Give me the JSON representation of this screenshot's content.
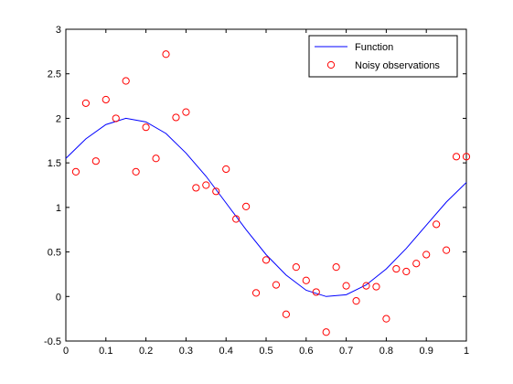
{
  "chart_data": {
    "type": "line",
    "xlim": [
      0,
      1
    ],
    "ylim": [
      -0.5,
      3
    ],
    "xticks": [
      0,
      0.1,
      0.2,
      0.3,
      0.4,
      0.5,
      0.6,
      0.7,
      0.8,
      0.9,
      1
    ],
    "yticks": [
      -0.5,
      0,
      0.5,
      1,
      1.5,
      2,
      2.5,
      3
    ],
    "xtick_labels": [
      "0",
      "0.1",
      "0.2",
      "0.3",
      "0.4",
      "0.5",
      "0.6",
      "0.7",
      "0.8",
      "0.9",
      "1"
    ],
    "ytick_labels": [
      "-0.5",
      "0",
      "0.5",
      "1",
      "1.5",
      "2",
      "2.5",
      "3"
    ],
    "grid": false,
    "legend_position": "top-right",
    "series": [
      {
        "name": "Function",
        "kind": "line",
        "color": "#0000ff",
        "x": [
          0,
          0.05,
          0.1,
          0.15,
          0.2,
          0.25,
          0.3,
          0.35,
          0.4,
          0.45,
          0.5,
          0.55,
          0.6,
          0.65,
          0.7,
          0.75,
          0.8,
          0.85,
          0.9,
          0.95,
          1
        ],
        "y": [
          1.55,
          1.77,
          1.93,
          2.0,
          1.96,
          1.83,
          1.61,
          1.35,
          1.05,
          0.75,
          0.47,
          0.24,
          0.07,
          0.0,
          0.02,
          0.13,
          0.31,
          0.54,
          0.8,
          1.06,
          1.28
        ]
      },
      {
        "name": "Noisy observations",
        "kind": "scatter",
        "color": "#ff0000",
        "x": [
          0.025,
          0.05,
          0.075,
          0.1,
          0.125,
          0.15,
          0.175,
          0.2,
          0.225,
          0.25,
          0.275,
          0.3,
          0.325,
          0.35,
          0.375,
          0.4,
          0.425,
          0.45,
          0.475,
          0.5,
          0.525,
          0.55,
          0.575,
          0.6,
          0.625,
          0.65,
          0.675,
          0.7,
          0.725,
          0.75,
          0.775,
          0.8,
          0.825,
          0.85,
          0.875,
          0.9,
          0.925,
          0.95,
          0.975,
          1.0
        ],
        "y": [
          1.4,
          2.17,
          1.52,
          2.21,
          2.0,
          2.42,
          1.4,
          1.9,
          1.55,
          2.72,
          2.01,
          2.07,
          1.22,
          1.25,
          1.18,
          1.43,
          0.87,
          1.01,
          0.04,
          0.41,
          0.13,
          -0.2,
          0.33,
          0.18,
          0.05,
          -0.4,
          0.33,
          0.12,
          -0.05,
          0.12,
          0.11,
          -0.25,
          0.31,
          0.28,
          0.37,
          0.47,
          0.81,
          0.52,
          1.57,
          1.57
        ]
      }
    ]
  }
}
